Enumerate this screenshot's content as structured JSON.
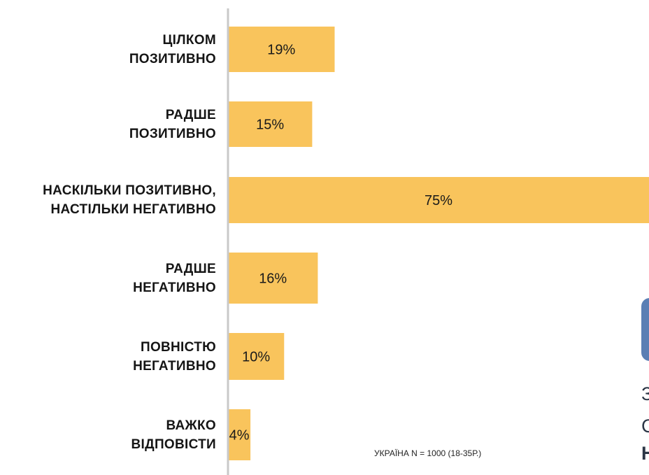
{
  "chart_data": {
    "type": "bar",
    "orientation": "horizontal",
    "categories": [
      "ЦІЛКОМ\nПОЗИТИВНО",
      "РАДШЕ\nПОЗИТИВНО",
      "НАСКІЛЬКИ ПОЗИТИВНО,\nНАСТІЛЬКИ НЕГАТИВНО",
      "РАДШЕ\nНЕГАТИВНО",
      "ПОВНІСТЮ\nНЕГАТИВНО",
      "ВАЖКО\nВІДПОВІСТИ"
    ],
    "values": [
      19,
      15,
      75,
      16,
      10,
      4
    ],
    "data_labels": [
      "19%",
      "15%",
      "75%",
      "16%",
      "10%",
      "4%"
    ],
    "title": "",
    "xlabel": "",
    "ylabel": "",
    "grid": false,
    "bar_color": "#f9c45c",
    "axis_color": "#c9c9c9"
  },
  "note": "УКРАЇНА N = 1000 (18-35Р.)",
  "edge": {
    "card_color": "#5b7fb4",
    "text_fragments": [
      "З",
      "С",
      "Н"
    ]
  }
}
